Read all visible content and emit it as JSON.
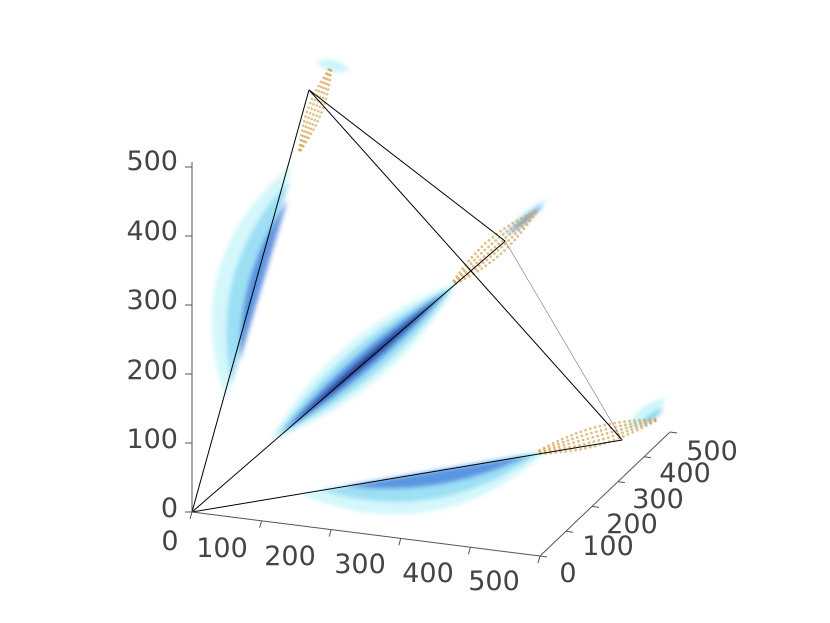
{
  "chart_data": {
    "type": "scatter",
    "projection": "3d",
    "title": "",
    "xlabel": "",
    "ylabel": "",
    "zlabel": "",
    "grid": false,
    "legend": "none",
    "xlim": [
      0,
      500
    ],
    "ylim": [
      0,
      500
    ],
    "zlim": [
      0,
      500
    ],
    "x_ticks": [
      "0",
      "100",
      "200",
      "300",
      "400",
      "500"
    ],
    "y_ticks": [
      "0",
      "100",
      "200",
      "300",
      "400",
      "500"
    ],
    "z_ticks": [
      "0",
      "100",
      "200",
      "300",
      "400",
      "500"
    ],
    "colors": {
      "light": "#a8f0f8",
      "mid": "#5cc0ec",
      "deep": "#2f64d6",
      "dark": "#1a2a80",
      "points": "#d8a860",
      "frame": "#000000",
      "axis": "#555555"
    },
    "tetrahedron": [
      [
        0,
        0,
        0
      ],
      [
        450,
        0,
        450
      ],
      [
        0,
        450,
        450
      ],
      [
        450,
        450,
        0
      ]
    ]
  }
}
